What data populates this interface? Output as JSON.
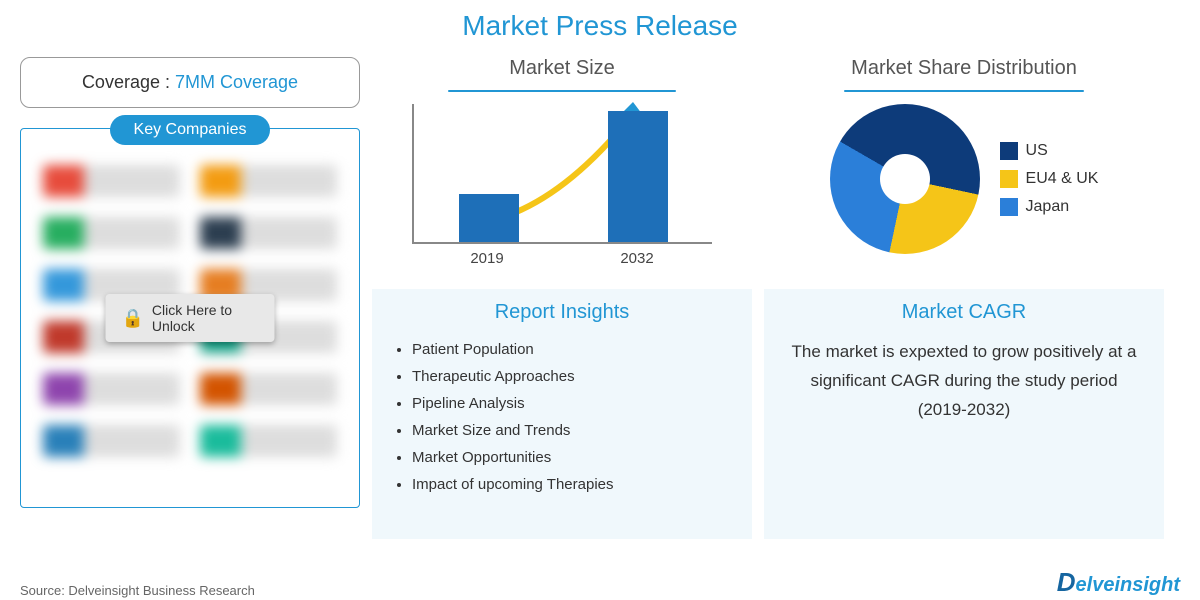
{
  "title": "Market Press Release",
  "market_size": {
    "title": "Market Size",
    "type": "bar",
    "categories": [
      "2019",
      "2032"
    ],
    "values": [
      35,
      95
    ],
    "bar_color": "#1e6fb8",
    "ylim": [
      0,
      100
    ],
    "arrow_color": "#f5c518",
    "arrow_tip_color": "#2196d4",
    "axis_color": "#888888"
  },
  "market_share": {
    "title": "Market Share Distribution",
    "type": "pie",
    "segments": [
      {
        "label": "US",
        "value": 45,
        "color": "#0d3b7a"
      },
      {
        "label": "EU4 & UK",
        "value": 25,
        "color": "#f5c518"
      },
      {
        "label": "Japan",
        "value": 30,
        "color": "#2b7fd9"
      }
    ],
    "hole_color": "#ffffff"
  },
  "coverage": {
    "label": "Coverage : ",
    "value": "7MM Coverage"
  },
  "key_companies": {
    "title": "Key Companies",
    "unlock_text": "Click Here to Unlock",
    "logo_colors": [
      "#e74c3c",
      "#f39c12",
      "#27ae60",
      "#2c3e50",
      "#3498db",
      "#e67e22",
      "#c0392b",
      "#16a085",
      "#8e44ad",
      "#d35400",
      "#2980b9",
      "#1abc9c"
    ]
  },
  "insights": {
    "title": "Report Insights",
    "items": [
      "Patient Population",
      "Therapeutic Approaches",
      "Pipeline Analysis",
      "Market Size and Trends",
      "Market Opportunities",
      "Impact of upcoming Therapies"
    ]
  },
  "cagr": {
    "title": "Market CAGR",
    "text": "The market is expexted to grow positively at a significant CAGR during the study period (2019-2032)"
  },
  "source": "Source: Delveinsight Business Research",
  "brand": "elveinsight",
  "brand_d": "D",
  "colors": {
    "primary": "#2196d4",
    "panel_bg": "#f0f8fc",
    "text": "#333333"
  }
}
